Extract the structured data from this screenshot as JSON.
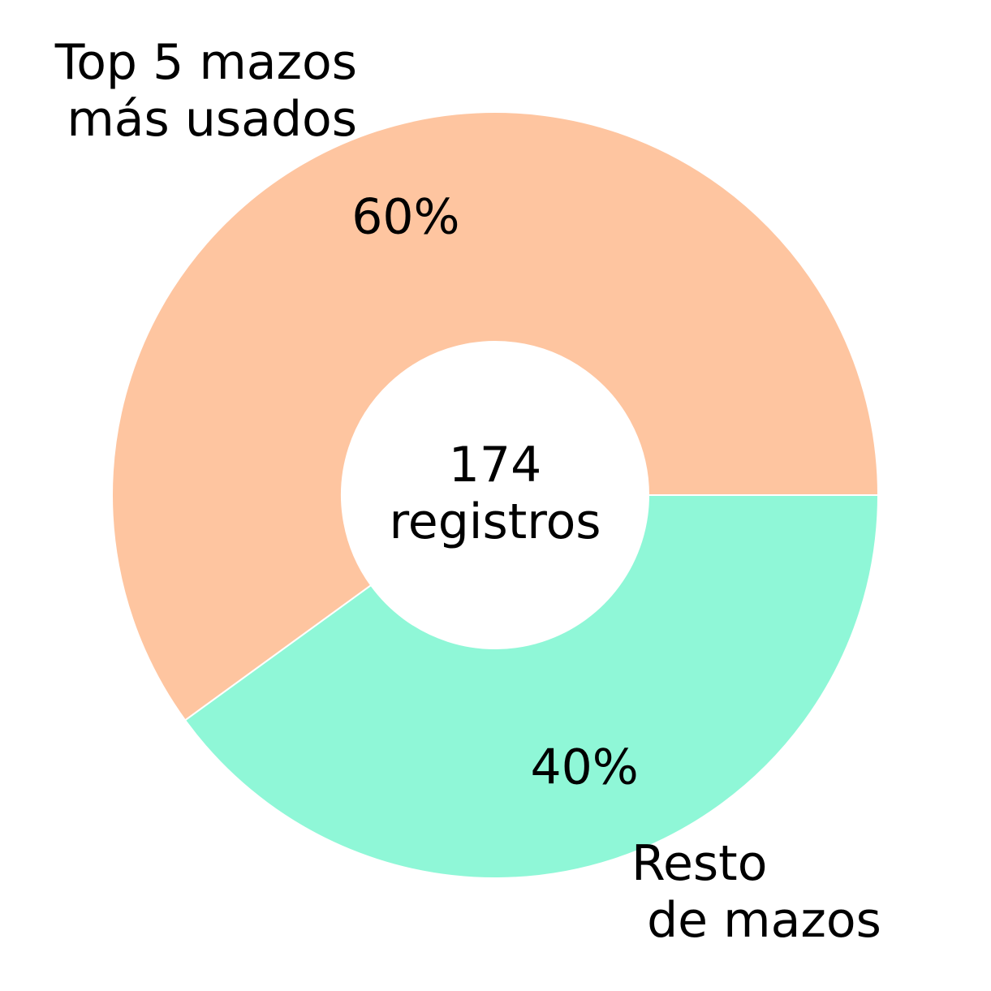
{
  "chart_data": {
    "type": "donut",
    "categories": [
      "Top 5 mazos\n más usados",
      "Resto\n de mazos"
    ],
    "values": [
      60,
      40
    ],
    "value_labels": [
      "60%",
      "40%"
    ],
    "colors": [
      "#fec5a0",
      "#8ff7d7"
    ],
    "center_label": "174\nregistros"
  }
}
